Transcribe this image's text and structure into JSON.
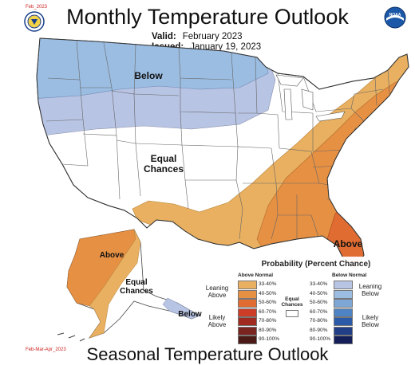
{
  "header": {
    "corner_date": "Feb_2023",
    "title": "Monthly Temperature Outlook",
    "valid_label": "Valid:",
    "valid_value": "February 2023",
    "issued_label": "Issued:",
    "issued_value": "January 19, 2023",
    "noaa_text": "NOAA"
  },
  "map_labels": {
    "below": "Below",
    "equal_chances": [
      "Equal",
      "Chances"
    ],
    "above_east": "Above",
    "alaska_above": "Above",
    "alaska_equal": [
      "Equal",
      "Chances"
    ],
    "alaska_below": "Below"
  },
  "legend": {
    "title": "Probability (Percent Chance)",
    "above_head": "Above Normal",
    "below_head": "Below Normal",
    "above_ranges": [
      "33-40%",
      "40-50%",
      "50-60%",
      "60-70%",
      "70-80%",
      "80-90%",
      "90-100%"
    ],
    "below_ranges": [
      "33-40%",
      "40-50%",
      "50-60%",
      "60-70%",
      "70-80%",
      "80-90%",
      "90-100%"
    ],
    "above_colors": [
      "#e8b060",
      "#e69043",
      "#e06c32",
      "#cc3c26",
      "#a02a20",
      "#7a2420",
      "#4a1a16"
    ],
    "below_colors": [
      "#b8c4e4",
      "#9bbde2",
      "#7ea7d6",
      "#4f84c4",
      "#2a5aa8",
      "#203f86",
      "#141f5a"
    ],
    "leaning_above": [
      "Leaning",
      "Above"
    ],
    "likely_above": [
      "Likely",
      "Above"
    ],
    "leaning_below": [
      "Leaning",
      "Below"
    ],
    "likely_below": [
      "Likely",
      "Below"
    ],
    "equal_chances": [
      "Equal",
      "Chances"
    ]
  },
  "footer": {
    "corner_date": "Feb-Mar-Apr_2023",
    "title": "Seasonal Temperature Outlook"
  },
  "colors": {
    "below_lean": "#b8c4e4",
    "below_40": "#9bbde2",
    "above_33": "#e8b060",
    "above_40": "#e69043",
    "above_50": "#e06c32"
  }
}
